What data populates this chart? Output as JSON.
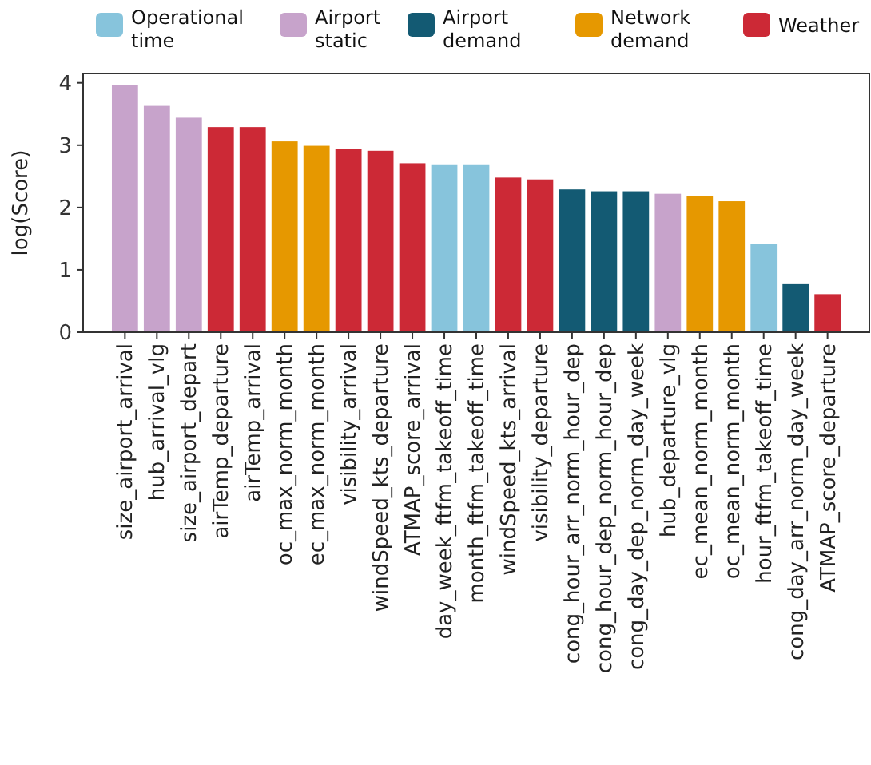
{
  "chart_data": {
    "type": "bar",
    "ylabel": "log(Score)",
    "categories": [
      "size_airport_arrival",
      "hub_arrival_vlg",
      "size_airport_depart",
      "airTemp_departure",
      "airTemp_arrival",
      "oc_max_norm_month",
      "ec_max_norm_month",
      "visibility_arrival",
      "windSpeed_kts_departure",
      "ATMAP_score_arrival",
      "day_week_ftfm_takeoff_time",
      "month_ftfm_takeoff_time",
      "windSpeed_kts_arrival",
      "visibility_departure",
      "cong_hour_arr_norm_hour_dep",
      "cong_hour_dep_norm_hour_dep",
      "cong_day_dep_norm_day_week",
      "hub_departure_vlg",
      "ec_mean_norm_month",
      "oc_mean_norm_month",
      "hour_ftfm_takeoff_time",
      "cong_day_arr_norm_day_week",
      "ATMAP_score_departure"
    ],
    "series": [
      {
        "name": "Operational time",
        "color": "#87c4dc",
        "values": [
          null,
          null,
          null,
          null,
          null,
          null,
          null,
          null,
          null,
          null,
          2.68,
          2.68,
          null,
          null,
          null,
          null,
          null,
          null,
          null,
          null,
          1.42,
          null,
          null
        ]
      },
      {
        "name": "Airport static",
        "color": "#c7a3cb",
        "values": [
          3.97,
          3.63,
          3.44,
          null,
          null,
          null,
          null,
          null,
          null,
          null,
          null,
          null,
          null,
          null,
          null,
          null,
          null,
          2.22,
          null,
          null,
          null,
          null,
          null
        ]
      },
      {
        "name": "Airport demand",
        "color": "#135a73",
        "values": [
          null,
          null,
          null,
          null,
          null,
          null,
          null,
          null,
          null,
          null,
          null,
          null,
          null,
          null,
          2.29,
          2.26,
          2.26,
          null,
          null,
          null,
          null,
          0.77,
          null
        ]
      },
      {
        "name": "Network demand",
        "color": "#e69800",
        "values": [
          null,
          null,
          null,
          null,
          null,
          3.06,
          2.99,
          null,
          null,
          null,
          null,
          null,
          null,
          null,
          null,
          null,
          null,
          null,
          2.18,
          2.1,
          null,
          null,
          null
        ]
      },
      {
        "name": "Weather",
        "color": "#cc2936",
        "values": [
          null,
          null,
          null,
          3.29,
          3.29,
          null,
          null,
          2.94,
          2.91,
          2.71,
          null,
          null,
          2.48,
          2.45,
          null,
          null,
          null,
          null,
          null,
          null,
          null,
          null,
          0.61
        ]
      }
    ],
    "ylim": [
      0,
      4.15
    ],
    "yticks": [
      0,
      1,
      2,
      3,
      4
    ],
    "grid": false,
    "legend": "top"
  }
}
